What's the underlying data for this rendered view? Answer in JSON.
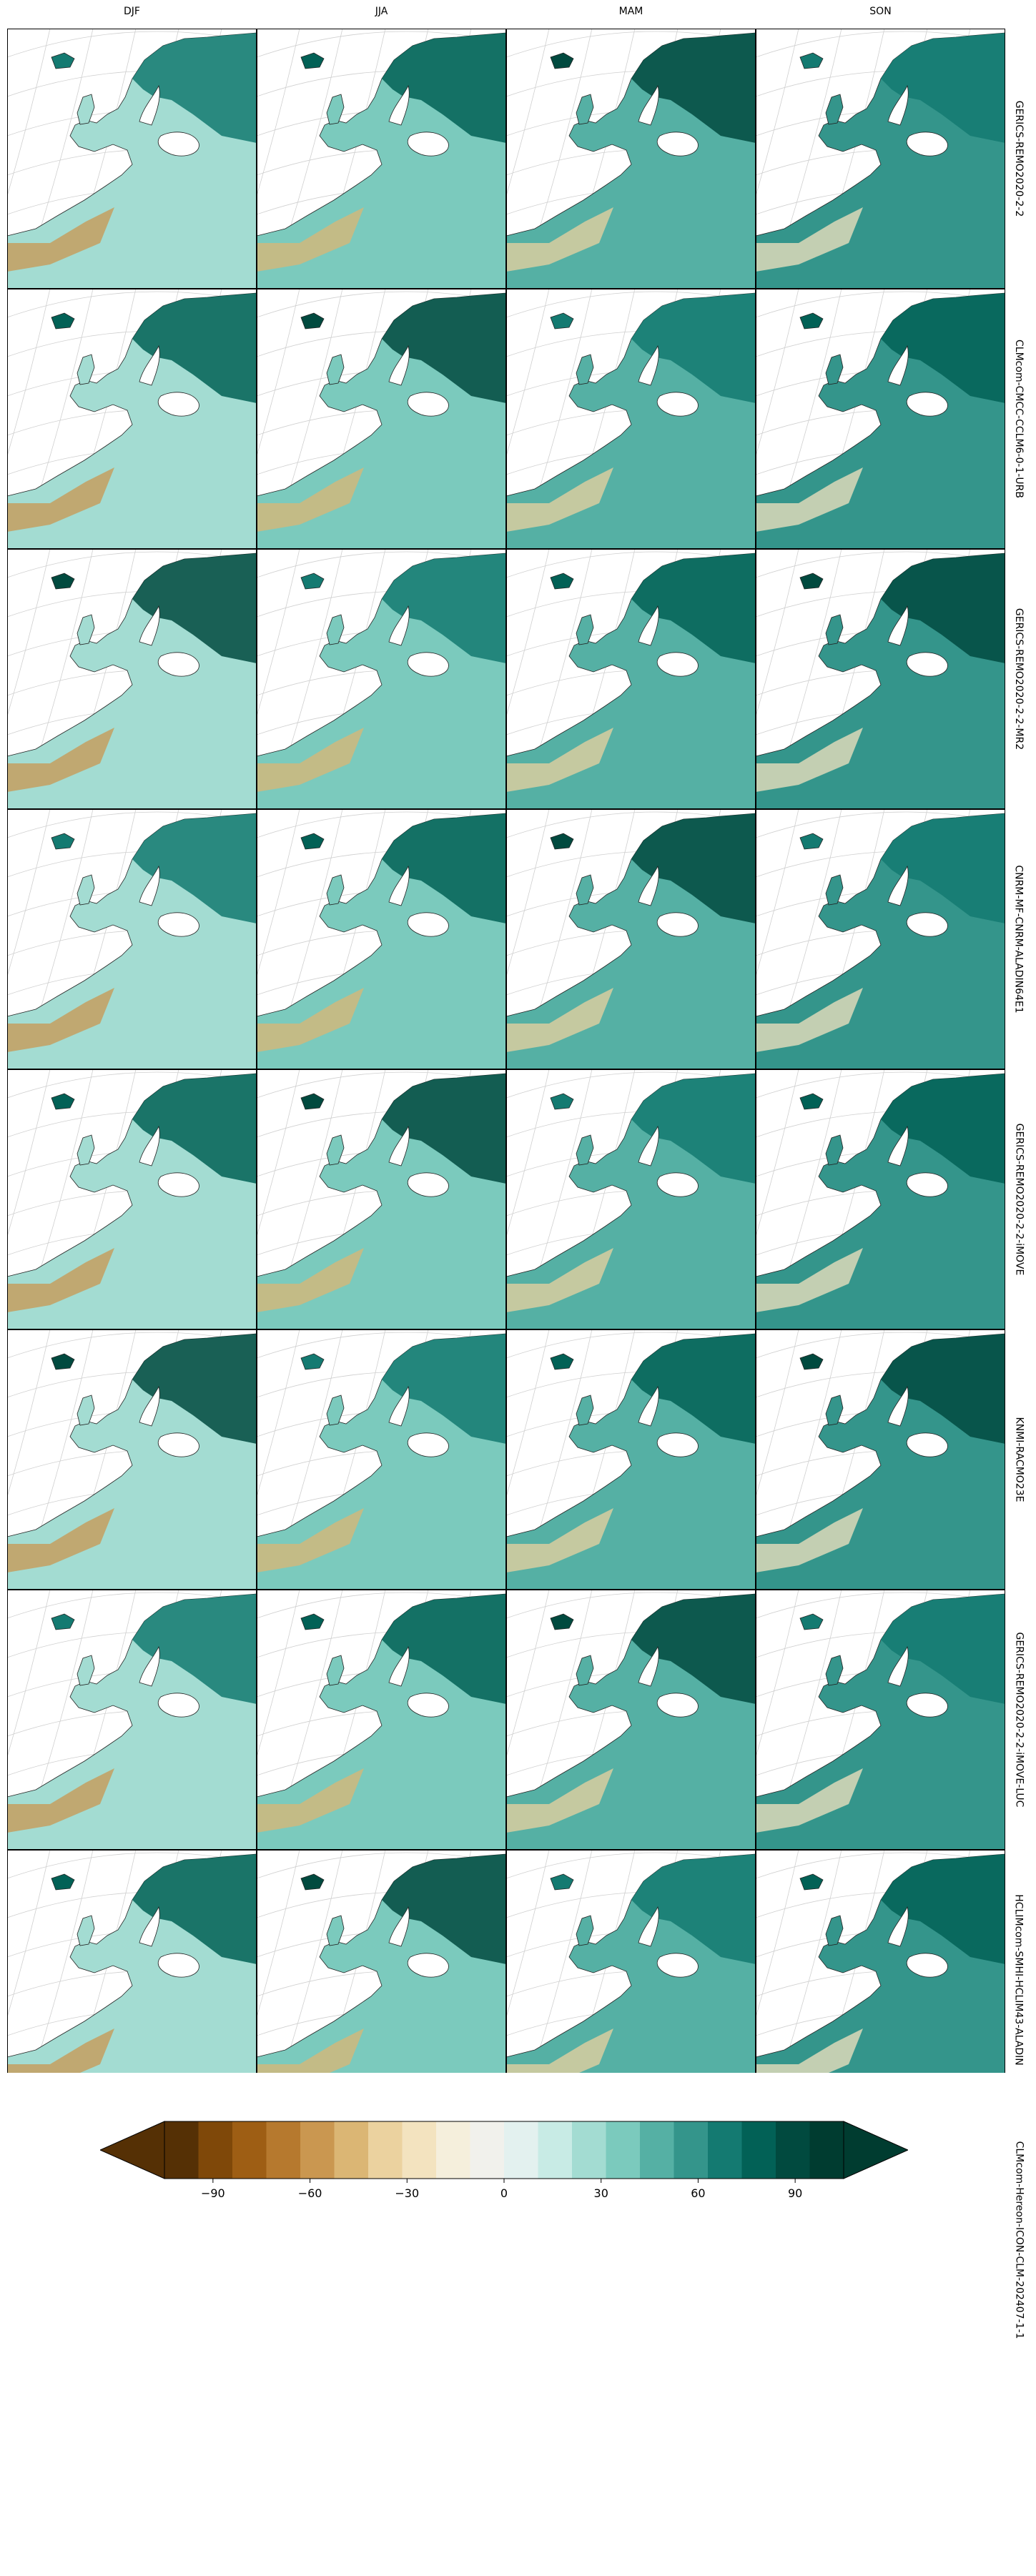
{
  "chart_data": {
    "type": "heatmap",
    "columns": [
      "DJF",
      "JJA",
      "MAM",
      "SON"
    ],
    "rows": [
      "GERICS-REMO2020-2-2",
      "CLMcom-CMCC-CCLM6-0-1-URB",
      "GERICS-REMO2020-2-2-MR2",
      "CNRM-MF-CNRM-ALADIN64E1",
      "GERICS-REMO2020-2-2-iMOVE",
      "KNMI-RACMO23E",
      "GERICS-REMO2020-2-2-iMOVE-LUC",
      "HCLIMcom-SMHI-HCLIM43-ALADIN",
      "CLMcom-Hereon-ICON-CLM-202407-1-1"
    ],
    "colorbar": {
      "min": -105,
      "max": 105,
      "step": 10,
      "extend": "both",
      "ticks": [
        -90,
        -60,
        -30,
        0,
        30,
        60,
        90
      ],
      "tick_labels": [
        "−90",
        "−60",
        "−30",
        "0",
        "30",
        "60",
        "90"
      ],
      "colors": [
        "#553005",
        "#7f4809",
        "#9e5e14",
        "#b6792e",
        "#ca9750",
        "#dbb674",
        "#ebd29f",
        "#f3e3bf",
        "#f5efdc",
        "#f1f1ec",
        "#e3f1ef",
        "#c8ebe5",
        "#a3dcd2",
        "#7bcabd",
        "#55b0a4",
        "#34958b",
        "#147a71",
        "#026156",
        "#014a3f",
        "#003c30"
      ]
    },
    "legend": "bottom",
    "grid": true
  }
}
